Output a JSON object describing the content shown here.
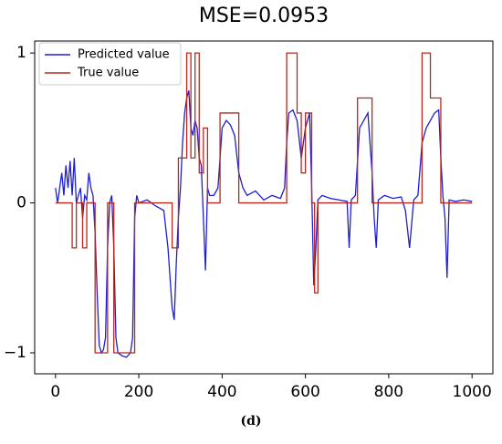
{
  "chart_data": {
    "type": "line",
    "title": "MSE=0.0953",
    "caption": "(d)",
    "xlim": [
      -50,
      1050
    ],
    "ylim": [
      -1.14,
      1.08
    ],
    "xticks": [
      0,
      200,
      400,
      600,
      800,
      1000
    ],
    "yticks": [
      {
        "value": -1,
        "label": "−1"
      },
      0,
      1
    ],
    "legend": "upper left",
    "series": [
      {
        "name": "Predicted value",
        "color": "#1f1fd0",
        "x": [
          0,
          5,
          10,
          15,
          20,
          25,
          30,
          35,
          40,
          45,
          50,
          55,
          60,
          65,
          70,
          75,
          80,
          85,
          90,
          95,
          100,
          105,
          110,
          115,
          120,
          125,
          130,
          135,
          140,
          145,
          150,
          160,
          170,
          180,
          185,
          190,
          195,
          200,
          220,
          240,
          260,
          270,
          280,
          285,
          290,
          295,
          300,
          305,
          310,
          315,
          320,
          325,
          330,
          335,
          340,
          345,
          350,
          355,
          360,
          365,
          370,
          380,
          390,
          395,
          400,
          410,
          420,
          430,
          440,
          450,
          460,
          480,
          500,
          520,
          540,
          550,
          555,
          560,
          570,
          580,
          590,
          600,
          610,
          615,
          620,
          625,
          630,
          640,
          660,
          680,
          700,
          705,
          710,
          720,
          730,
          740,
          750,
          760,
          765,
          770,
          775,
          790,
          810,
          830,
          840,
          850,
          860,
          870,
          880,
          890,
          900,
          910,
          920,
          925,
          930,
          935,
          940,
          945,
          960,
          980,
          1000
        ],
        "values": [
          0.1,
          0,
          0.1,
          0.2,
          0.05,
          0.25,
          0.1,
          0.28,
          0.05,
          0.3,
          0,
          0.05,
          0.1,
          -0.1,
          0.05,
          0.02,
          0.2,
          0.1,
          0.05,
          -0.2,
          -0.6,
          -0.95,
          -1,
          -0.98,
          -0.9,
          -0.3,
          0,
          0.05,
          -0.3,
          -0.9,
          -1,
          -1.02,
          -1.03,
          -1,
          -0.9,
          -0.1,
          0.05,
          0,
          0.02,
          -0.02,
          -0.05,
          -0.3,
          -0.7,
          -0.78,
          -0.4,
          -0.1,
          0.1,
          0.4,
          0.6,
          0.7,
          0.75,
          0.5,
          0.45,
          0.55,
          0.5,
          0.3,
          0.25,
          -0.1,
          -0.45,
          0.1,
          0.05,
          0.05,
          0.1,
          0.3,
          0.5,
          0.55,
          0.52,
          0.45,
          0.2,
          0.1,
          0.05,
          0.08,
          0.02,
          0.05,
          0.03,
          0.1,
          0.4,
          0.6,
          0.62,
          0.55,
          0.3,
          0.5,
          0.6,
          0.1,
          -0.55,
          -0.3,
          0.02,
          0.05,
          0.03,
          0.02,
          0.01,
          -0.3,
          0.02,
          0.05,
          0.5,
          0.55,
          0.6,
          0.2,
          -0.1,
          -0.3,
          0.02,
          0.05,
          0.03,
          0.04,
          -0.05,
          -0.3,
          0.02,
          0.05,
          0.4,
          0.5,
          0.55,
          0.6,
          0.62,
          0.3,
          0.05,
          -0.1,
          -0.5,
          0.02,
          0.01,
          0.02,
          0.01
        ]
      },
      {
        "name": "True value",
        "color": "#b8281e",
        "x": [
          0,
          40,
          40,
          50,
          50,
          65,
          65,
          75,
          75,
          95,
          95,
          125,
          125,
          140,
          140,
          190,
          190,
          280,
          280,
          295,
          295,
          315,
          315,
          325,
          325,
          335,
          335,
          345,
          345,
          355,
          355,
          365,
          365,
          395,
          395,
          440,
          440,
          555,
          555,
          580,
          580,
          590,
          590,
          600,
          600,
          615,
          615,
          622,
          622,
          630,
          630,
          725,
          725,
          760,
          760,
          880,
          880,
          900,
          900,
          925,
          925,
          1000
        ],
        "values": [
          0,
          0,
          -0.3,
          -0.3,
          0,
          0,
          -0.3,
          -0.3,
          0,
          0,
          -1,
          -1,
          0,
          0,
          -1,
          -1,
          0,
          0,
          -0.3,
          -0.3,
          0.3,
          0.3,
          1,
          1,
          0.3,
          0.3,
          1,
          1,
          0.2,
          0.2,
          0.5,
          0.5,
          0,
          0,
          0.6,
          0.6,
          0,
          0,
          1,
          1,
          0.6,
          0.6,
          0.2,
          0.2,
          0.6,
          0.6,
          0,
          0,
          -0.6,
          -0.6,
          0,
          0,
          0.7,
          0.7,
          0,
          0,
          1,
          1,
          0.7,
          0.7,
          0,
          0
        ]
      }
    ]
  }
}
